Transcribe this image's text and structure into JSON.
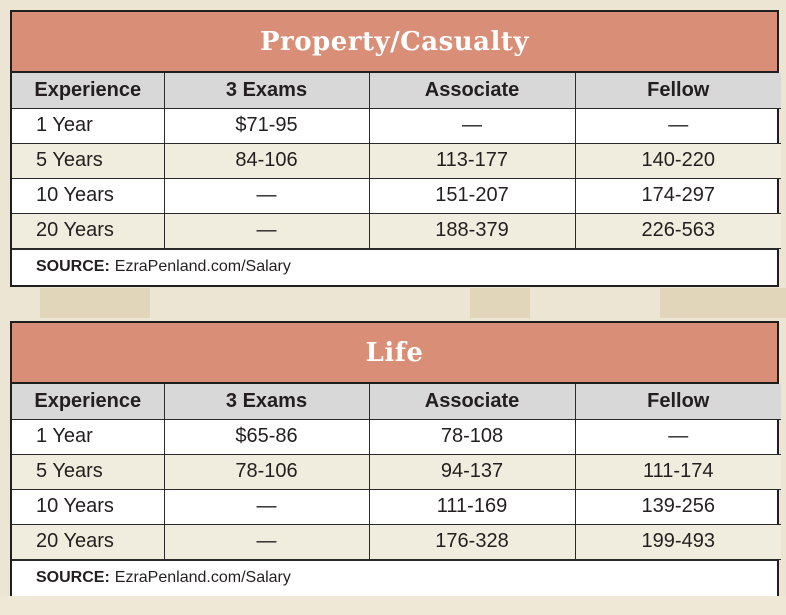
{
  "tables": [
    {
      "title": "Property/Casualty",
      "headers": [
        "Experience",
        "3 Exams",
        "Associate",
        "Fellow"
      ],
      "rows": [
        [
          "1 Year",
          "$71-95",
          "—",
          "—"
        ],
        [
          "5 Years",
          "84-106",
          "113-177",
          "140-220"
        ],
        [
          "10 Years",
          "—",
          "151-207",
          "174-297"
        ],
        [
          "20 Years",
          "—",
          "188-379",
          "226-563"
        ]
      ],
      "source_label": "SOURCE:",
      "source_text": "EzraPenland.com/Salary"
    },
    {
      "title": "Life",
      "headers": [
        "Experience",
        "3 Exams",
        "Associate",
        "Fellow"
      ],
      "rows": [
        [
          "1 Year",
          "$65-86",
          "78-108",
          "—"
        ],
        [
          "5 Years",
          "78-106",
          "94-137",
          "111-174"
        ],
        [
          "10 Years",
          "—",
          "111-169",
          "139-256"
        ],
        [
          "20 Years",
          "—",
          "176-328",
          "199-493"
        ]
      ],
      "source_label": "SOURCE:",
      "source_text": "EzraPenland.com/Salary"
    }
  ]
}
